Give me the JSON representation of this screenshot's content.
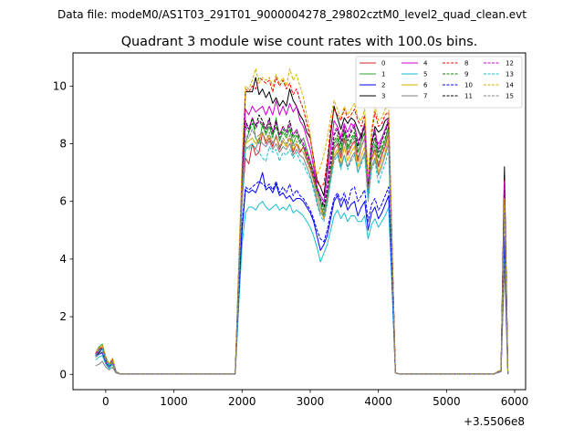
{
  "figure": {
    "suptitle": "Data file: modeM0/AS1T03_291T01_9000004278_29802cztM0_level2_quad_clean.evt",
    "title": "Quadrant 3 module wise count rates with 100.0s bins.",
    "offset_text": "+3.5506e8"
  },
  "chart_data": {
    "type": "line",
    "title": "Quadrant 3 module wise count rates with 100.0s bins.",
    "xlabel": "",
    "ylabel": "",
    "x_offset": 355060000,
    "xlim": [
      -480,
      6160
    ],
    "ylim": [
      -0.53,
      11.15
    ],
    "xticks": [
      0,
      1000,
      2000,
      3000,
      4000,
      5000,
      6000
    ],
    "yticks": [
      0,
      2,
      4,
      6,
      8,
      10
    ],
    "grid": false,
    "legend_position": "top-right",
    "x": [
      -150,
      -100,
      -50,
      0,
      50,
      100,
      150,
      200,
      300,
      400,
      1900,
      1950,
      2000,
      2050,
      2100,
      2150,
      2200,
      2250,
      2300,
      2350,
      2400,
      2450,
      2500,
      2550,
      2600,
      2650,
      2700,
      2750,
      2800,
      2850,
      2900,
      2950,
      3000,
      3050,
      3100,
      3150,
      3200,
      3250,
      3300,
      3350,
      3400,
      3450,
      3500,
      3550,
      3600,
      3650,
      3700,
      3750,
      3800,
      3850,
      3900,
      3950,
      4000,
      4050,
      4100,
      4150,
      4200,
      4250,
      4300,
      4350,
      4400,
      4450,
      4500,
      4550,
      4600,
      4650,
      4700,
      4750,
      4800,
      5000,
      5500,
      5700,
      5800,
      5850,
      5900
    ],
    "series": [
      {
        "name": "0",
        "color": "#d62728",
        "dash": false
      },
      {
        "name": "1",
        "color": "#2ca02c",
        "dash": false
      },
      {
        "name": "2",
        "color": "#0000ff",
        "dash": false
      },
      {
        "name": "3",
        "color": "#000000",
        "dash": false
      },
      {
        "name": "4",
        "color": "#cc00cc",
        "dash": false
      },
      {
        "name": "5",
        "color": "#17becf",
        "dash": false
      },
      {
        "name": "6",
        "color": "#d4b000",
        "dash": false
      },
      {
        "name": "7",
        "color": "#808080",
        "dash": false
      },
      {
        "name": "8",
        "color": "#ff0000",
        "dash": true
      },
      {
        "name": "9",
        "color": "#008000",
        "dash": true
      },
      {
        "name": "10",
        "color": "#0000ff",
        "dash": true
      },
      {
        "name": "11",
        "color": "#000000",
        "dash": true
      },
      {
        "name": "12",
        "color": "#cc00cc",
        "dash": true
      },
      {
        "name": "13",
        "color": "#17becf",
        "dash": true
      },
      {
        "name": "14",
        "color": "#d4b000",
        "dash": true
      },
      {
        "name": "15",
        "color": "#808080",
        "dash": true
      }
    ],
    "series_values": [
      [
        0.7,
        0.8,
        0.95,
        0.55,
        0.3,
        0.5,
        0.1,
        0.02,
        0.02,
        0.02,
        0.02,
        3.0,
        6.0,
        7.5,
        7.3,
        8.0,
        7.6,
        7.7,
        8.4,
        8.0,
        8.2,
        7.9,
        8.3,
        7.8,
        8.1,
        7.9,
        8.2,
        7.7,
        8.0,
        7.7,
        7.9,
        7.5,
        7.2,
        6.8,
        6.2,
        5.8,
        5.4,
        6.0,
        6.8,
        7.8,
        8.0,
        7.5,
        8.2,
        7.6,
        7.9,
        8.1,
        7.4,
        7.9,
        8.2,
        6.2,
        7.5,
        7.8,
        7.2,
        7.6,
        7.9,
        8.4,
        4.2,
        0.05,
        0.02,
        0.02,
        0.02,
        0.02,
        0.02,
        0.02,
        0.02,
        0.02,
        0.02,
        0.02,
        0.02,
        0.02,
        0.02,
        0.02,
        0.15,
        6.3,
        0.02
      ],
      [
        0.75,
        0.95,
        1.05,
        0.6,
        0.35,
        0.55,
        0.1,
        0.02,
        0.02,
        0.02,
        0.02,
        3.2,
        6.5,
        8.0,
        8.4,
        8.9,
        8.2,
        8.0,
        8.7,
        8.3,
        8.6,
        8.2,
        8.9,
        8.1,
        8.4,
        8.2,
        8.5,
        8.0,
        8.3,
        8.0,
        8.2,
        7.8,
        7.4,
        7.0,
        6.4,
        6.0,
        5.5,
        6.2,
        7.0,
        8.0,
        8.2,
        7.7,
        8.5,
        7.8,
        8.1,
        8.3,
        7.7,
        8.1,
        8.4,
        6.4,
        7.7,
        8.0,
        7.5,
        7.8,
        8.1,
        8.6,
        4.3,
        0.05,
        0.02,
        0.02,
        0.02,
        0.02,
        0.02,
        0.02,
        0.02,
        0.02,
        0.02,
        0.02,
        0.02,
        0.02,
        0.02,
        0.02,
        0.15,
        6.5,
        0.02
      ],
      [
        0.6,
        0.7,
        0.75,
        0.4,
        0.25,
        0.4,
        0.08,
        0.02,
        0.02,
        0.02,
        0.02,
        2.5,
        5.0,
        6.4,
        6.3,
        6.4,
        6.3,
        6.6,
        7.0,
        6.4,
        6.5,
        6.3,
        6.6,
        6.2,
        6.3,
        6.1,
        6.2,
        6.0,
        6.1,
        6.1,
        6.0,
        5.8,
        5.6,
        5.3,
        4.8,
        4.3,
        4.5,
        4.8,
        5.4,
        6.0,
        6.2,
        5.8,
        6.1,
        5.7,
        5.9,
        6.0,
        5.5,
        5.8,
        6.0,
        5.0,
        5.6,
        5.8,
        5.4,
        5.6,
        5.9,
        6.2,
        3.2,
        0.05,
        0.02,
        0.02,
        0.02,
        0.02,
        0.02,
        0.02,
        0.02,
        0.02,
        0.02,
        0.02,
        0.02,
        0.02,
        0.02,
        0.02,
        0.1,
        4.6,
        0.02
      ],
      [
        0.65,
        0.75,
        0.9,
        0.5,
        0.3,
        0.5,
        0.1,
        0.02,
        0.02,
        0.02,
        0.02,
        3.5,
        7.0,
        9.8,
        9.8,
        9.8,
        10.3,
        9.7,
        9.9,
        9.6,
        9.8,
        9.4,
        9.6,
        9.3,
        9.5,
        9.3,
        9.9,
        9.5,
        9.3,
        9.0,
        8.8,
        8.4,
        8.2,
        7.5,
        6.7,
        6.5,
        6.2,
        7.2,
        8.3,
        9.3,
        8.9,
        8.5,
        8.9,
        8.7,
        8.9,
        8.8,
        8.5,
        8.2,
        8.7,
        6.3,
        8.0,
        8.6,
        8.4,
        8.5,
        8.8,
        8.9,
        4.5,
        0.05,
        0.02,
        0.02,
        0.02,
        0.02,
        0.02,
        0.02,
        0.02,
        0.02,
        0.02,
        0.02,
        0.02,
        0.02,
        0.02,
        0.02,
        0.15,
        7.2,
        0.02
      ],
      [
        0.7,
        0.85,
        0.95,
        0.55,
        0.3,
        0.5,
        0.1,
        0.02,
        0.02,
        0.02,
        0.02,
        3.3,
        6.8,
        9.2,
        9.0,
        9.3,
        9.1,
        9.2,
        9.3,
        9.0,
        9.3,
        9.0,
        9.5,
        9.0,
        9.3,
        9.0,
        9.4,
        9.1,
        9.3,
        8.8,
        8.6,
        8.2,
        7.8,
        7.2,
        6.5,
        6.2,
        6.0,
        6.8,
        7.8,
        8.8,
        8.6,
        8.2,
        8.7,
        8.4,
        8.7,
        8.6,
        8.1,
        8.3,
        8.6,
        6.1,
        7.8,
        8.2,
        8.0,
        8.2,
        8.5,
        8.7,
        4.4,
        0.05,
        0.02,
        0.02,
        0.02,
        0.02,
        0.02,
        0.02,
        0.02,
        0.02,
        0.02,
        0.02,
        0.02,
        0.02,
        0.02,
        0.02,
        0.15,
        6.4,
        0.02
      ],
      [
        0.5,
        0.6,
        0.65,
        0.35,
        0.2,
        0.35,
        0.06,
        0.02,
        0.02,
        0.02,
        0.02,
        2.3,
        4.5,
        5.6,
        5.8,
        5.8,
        5.7,
        5.9,
        6.0,
        5.8,
        5.7,
        5.8,
        5.9,
        5.7,
        5.8,
        5.7,
        5.9,
        5.6,
        5.7,
        5.6,
        5.5,
        5.3,
        5.1,
        4.8,
        4.4,
        3.9,
        4.2,
        4.5,
        5.0,
        5.5,
        5.7,
        5.4,
        5.6,
        5.3,
        5.5,
        5.5,
        5.3,
        5.3,
        5.5,
        4.7,
        5.2,
        5.4,
        5.1,
        5.3,
        5.5,
        5.8,
        3.0,
        0.05,
        0.02,
        0.02,
        0.02,
        0.02,
        0.02,
        0.02,
        0.02,
        0.02,
        0.02,
        0.02,
        0.02,
        0.02,
        0.02,
        0.02,
        0.1,
        4.0,
        0.02
      ],
      [
        0.7,
        0.85,
        0.95,
        0.55,
        0.3,
        0.5,
        0.1,
        0.02,
        0.02,
        0.02,
        0.02,
        3.0,
        6.3,
        8.0,
        8.1,
        8.2,
        8.0,
        8.2,
        8.4,
        8.1,
        8.3,
        8.0,
        8.2,
        7.9,
        8.1,
        7.9,
        8.2,
        7.8,
        8.0,
        7.8,
        7.7,
        7.4,
        7.1,
        6.7,
        6.2,
        5.8,
        5.4,
        6.0,
        6.8,
        7.6,
        7.8,
        7.3,
        7.9,
        7.4,
        7.7,
        7.9,
        7.2,
        7.6,
        7.9,
        6.3,
        7.4,
        7.7,
        7.0,
        7.4,
        7.7,
        8.2,
        4.1,
        0.05,
        0.02,
        0.02,
        0.02,
        0.02,
        0.02,
        0.02,
        0.02,
        0.02,
        0.02,
        0.02,
        0.02,
        0.02,
        0.02,
        0.02,
        0.15,
        6.1,
        0.02
      ],
      [
        0.3,
        0.35,
        0.45,
        0.25,
        0.15,
        0.25,
        0.05,
        0.02,
        0.02,
        0.02,
        0.02,
        3.0,
        6.0,
        7.8,
        7.9,
        8.0,
        7.8,
        8.2,
        8.0,
        7.9,
        8.1,
        7.8,
        8.0,
        7.7,
        7.9,
        7.8,
        8.0,
        7.6,
        7.8,
        7.6,
        7.5,
        7.2,
        6.9,
        6.5,
        6.0,
        5.6,
        5.5,
        6.0,
        6.8,
        7.5,
        7.7,
        7.2,
        7.6,
        7.2,
        7.5,
        7.7,
        7.0,
        7.4,
        7.7,
        6.1,
        7.2,
        7.5,
        6.9,
        7.2,
        7.6,
        8.0,
        4.0,
        0.05,
        0.02,
        0.02,
        0.02,
        0.02,
        0.02,
        0.02,
        0.02,
        0.02,
        0.02,
        0.02,
        0.02,
        0.02,
        0.02,
        0.02,
        0.1,
        3.8,
        0.02
      ],
      [
        0.75,
        0.9,
        1.0,
        0.6,
        0.35,
        0.55,
        0.1,
        0.02,
        0.02,
        0.02,
        0.02,
        3.6,
        7.2,
        9.9,
        9.8,
        10.0,
        9.9,
        10.3,
        10.2,
        10.1,
        10.2,
        9.8,
        10.3,
        10.0,
        10.2,
        9.9,
        10.1,
        9.7,
        9.9,
        9.5,
        9.2,
        8.7,
        8.2,
        7.4,
        6.8,
        6.5,
        6.6,
        7.4,
        8.6,
        9.2,
        9.0,
        8.8,
        9.2,
        8.9,
        9.0,
        9.2,
        8.8,
        8.6,
        9.0,
        6.6,
        8.3,
        9.1,
        8.6,
        8.7,
        9.0,
        9.1,
        4.6,
        0.05,
        0.02,
        0.02,
        0.02,
        0.02,
        0.02,
        0.02,
        0.02,
        0.02,
        0.02,
        0.02,
        0.02,
        0.02,
        0.02,
        0.02,
        0.15,
        6.8,
        0.02
      ],
      [
        0.7,
        0.85,
        0.95,
        0.55,
        0.3,
        0.5,
        0.1,
        0.02,
        0.02,
        0.02,
        0.02,
        3.2,
        6.6,
        8.6,
        8.4,
        8.7,
        8.5,
        8.8,
        8.6,
        8.4,
        8.7,
        8.3,
        8.6,
        8.2,
        8.5,
        8.3,
        8.6,
        8.2,
        8.4,
        8.1,
        7.9,
        7.6,
        7.3,
        6.9,
        6.4,
        6.0,
        5.7,
        6.3,
        7.2,
        8.1,
        8.3,
        7.8,
        8.4,
        7.9,
        8.2,
        8.4,
        7.7,
        8.1,
        8.4,
        6.5,
        7.8,
        8.2,
        7.5,
        7.9,
        8.2,
        8.6,
        4.3,
        0.05,
        0.02,
        0.02,
        0.02,
        0.02,
        0.02,
        0.02,
        0.02,
        0.02,
        0.02,
        0.02,
        0.02,
        0.02,
        0.02,
        0.02,
        0.15,
        6.6,
        0.02
      ],
      [
        0.6,
        0.7,
        0.8,
        0.45,
        0.25,
        0.4,
        0.08,
        0.02,
        0.02,
        0.02,
        0.02,
        2.6,
        5.2,
        6.5,
        6.4,
        6.5,
        6.6,
        6.7,
        6.6,
        6.5,
        6.6,
        6.4,
        6.7,
        6.3,
        6.5,
        6.3,
        6.6,
        6.2,
        6.4,
        6.2,
        6.1,
        5.9,
        5.7,
        5.4,
        5.0,
        4.7,
        4.6,
        5.0,
        5.6,
        6.1,
        6.3,
        6.0,
        6.3,
        5.9,
        6.4,
        6.5,
        6.0,
        6.2,
        6.4,
        5.3,
        5.9,
        6.1,
        5.7,
        5.9,
        6.2,
        6.5,
        3.3,
        0.05,
        0.02,
        0.02,
        0.02,
        0.02,
        0.02,
        0.02,
        0.02,
        0.02,
        0.02,
        0.02,
        0.02,
        0.02,
        0.02,
        0.02,
        0.1,
        4.8,
        0.02
      ],
      [
        0.65,
        0.8,
        0.9,
        0.5,
        0.3,
        0.45,
        0.1,
        0.02,
        0.02,
        0.02,
        0.02,
        3.4,
        6.9,
        8.8,
        8.5,
        8.9,
        8.6,
        9.0,
        8.8,
        8.5,
        8.9,
        8.4,
        8.8,
        8.3,
        8.6,
        8.4,
        8.8,
        8.3,
        8.5,
        8.2,
        8.0,
        7.7,
        7.4,
        7.0,
        6.5,
        6.1,
        5.8,
        6.4,
        7.4,
        8.3,
        8.5,
        8.0,
        8.6,
        8.1,
        8.4,
        8.6,
        7.9,
        8.3,
        8.6,
        6.6,
        8.0,
        8.4,
        7.7,
        8.1,
        8.4,
        8.8,
        4.4,
        0.05,
        0.02,
        0.02,
        0.02,
        0.02,
        0.02,
        0.02,
        0.02,
        0.02,
        0.02,
        0.02,
        0.02,
        0.02,
        0.02,
        0.02,
        0.15,
        6.9,
        0.02
      ],
      [
        0.7,
        0.85,
        0.95,
        0.55,
        0.3,
        0.5,
        0.1,
        0.02,
        0.02,
        0.02,
        0.02,
        3.3,
        6.7,
        8.7,
        8.5,
        8.9,
        8.6,
        8.8,
        8.7,
        8.5,
        8.8,
        8.4,
        8.7,
        8.3,
        8.6,
        8.4,
        8.7,
        8.3,
        8.5,
        8.2,
        8.0,
        7.7,
        7.4,
        7.0,
        6.5,
        6.1,
        5.9,
        6.5,
        7.5,
        8.4,
        8.6,
        8.1,
        8.6,
        8.2,
        8.5,
        8.7,
        8.0,
        8.4,
        8.7,
        6.4,
        8.1,
        8.5,
        7.8,
        8.2,
        8.5,
        8.9,
        4.4,
        0.05,
        0.02,
        0.02,
        0.02,
        0.02,
        0.02,
        0.02,
        0.02,
        0.02,
        0.02,
        0.02,
        0.02,
        0.02,
        0.02,
        0.02,
        0.15,
        6.7,
        0.02
      ],
      [
        0.65,
        0.8,
        0.9,
        0.5,
        0.3,
        0.45,
        0.1,
        0.02,
        0.02,
        0.02,
        0.02,
        3.0,
        6.2,
        7.9,
        7.8,
        8.0,
        7.8,
        7.7,
        7.5,
        7.4,
        7.9,
        7.7,
        7.8,
        7.4,
        7.7,
        7.6,
        7.8,
        7.5,
        7.7,
        7.4,
        7.3,
        7.0,
        6.8,
        6.4,
        5.9,
        5.5,
        5.3,
        5.9,
        6.7,
        7.4,
        7.6,
        7.1,
        7.6,
        7.1,
        7.4,
        7.6,
        7.0,
        7.3,
        7.6,
        6.0,
        7.1,
        7.4,
        6.6,
        7.0,
        7.3,
        7.8,
        3.9,
        0.05,
        0.02,
        0.02,
        0.02,
        0.02,
        0.02,
        0.02,
        0.02,
        0.02,
        0.02,
        0.02,
        0.02,
        0.02,
        0.02,
        0.02,
        0.15,
        5.9,
        0.02
      ],
      [
        0.75,
        0.9,
        1.0,
        0.6,
        0.35,
        0.55,
        0.1,
        0.02,
        0.02,
        0.02,
        0.02,
        3.7,
        7.4,
        10.0,
        9.9,
        10.2,
        10.6,
        10.1,
        10.3,
        10.2,
        10.3,
        10.0,
        10.4,
        10.1,
        10.3,
        10.0,
        10.6,
        10.2,
        10.4,
        10.0,
        9.6,
        9.0,
        8.3,
        7.4,
        6.9,
        7.2,
        7.6,
        8.2,
        8.9,
        9.5,
        9.2,
        8.9,
        9.3,
        9.0,
        9.2,
        9.4,
        8.9,
        8.8,
        9.2,
        6.8,
        8.5,
        9.3,
        8.8,
        8.9,
        9.2,
        9.3,
        4.7,
        0.05,
        0.02,
        0.02,
        0.02,
        0.02,
        0.02,
        0.02,
        0.02,
        0.02,
        0.02,
        0.02,
        0.02,
        0.02,
        0.02,
        0.02,
        0.15,
        6.1,
        0.02
      ],
      [
        0.6,
        0.7,
        0.8,
        0.45,
        0.25,
        0.4,
        0.08,
        0.02,
        0.02,
        0.02,
        0.02,
        3.1,
        6.4,
        8.3,
        8.2,
        8.5,
        8.2,
        8.3,
        8.4,
        8.1,
        8.4,
        8.0,
        8.3,
        7.9,
        8.2,
        8.0,
        8.3,
        7.9,
        8.1,
        7.8,
        7.7,
        7.4,
        7.1,
        6.7,
        6.2,
        5.8,
        5.6,
        6.2,
        7.0,
        7.9,
        8.1,
        7.6,
        8.1,
        7.7,
        8.0,
        8.2,
        7.5,
        7.9,
        8.2,
        6.2,
        7.6,
        7.9,
        7.3,
        7.7,
        8.0,
        8.4,
        4.2,
        0.05,
        0.02,
        0.02,
        0.02,
        0.02,
        0.02,
        0.02,
        0.02,
        0.02,
        0.02,
        0.02,
        0.02,
        0.02,
        0.02,
        0.02,
        0.1,
        5.6,
        0.02
      ]
    ]
  }
}
